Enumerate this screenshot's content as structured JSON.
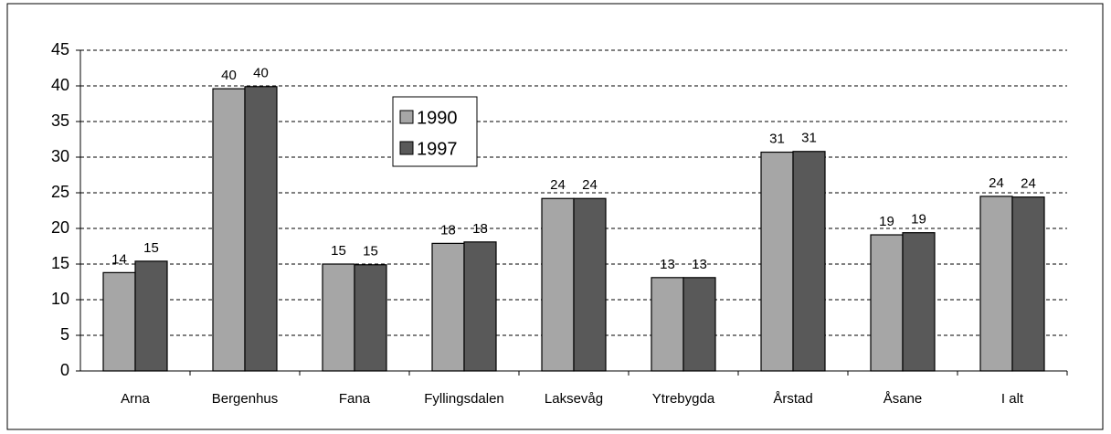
{
  "chart_data": {
    "type": "bar",
    "categories": [
      "Arna",
      "Bergenhus",
      "Fana",
      "Fyllingsdalen",
      "Laksevåg",
      "Ytrebygda",
      "Årstad",
      "Åsane",
      "I alt"
    ],
    "series": [
      {
        "name": "1990",
        "color": "#a6a6a6",
        "values": [
          13.8,
          39.6,
          15,
          17.9,
          24.2,
          13.1,
          30.7,
          19.1,
          24.5
        ],
        "value_labels": [
          "14",
          "40",
          "15",
          "18",
          "24",
          "13",
          "31",
          "19",
          "24"
        ]
      },
      {
        "name": "1997",
        "color": "#595959",
        "values": [
          15.4,
          39.9,
          14.9,
          18.1,
          24.2,
          13.1,
          30.8,
          19.4,
          24.4
        ],
        "value_labels": [
          "15",
          "40",
          "15",
          "18",
          "24",
          "13",
          "31",
          "19",
          "24"
        ]
      }
    ],
    "ylim": [
      0,
      45
    ],
    "yticks": [
      0,
      5,
      10,
      15,
      20,
      25,
      30,
      35,
      40,
      45
    ],
    "grid": true
  }
}
